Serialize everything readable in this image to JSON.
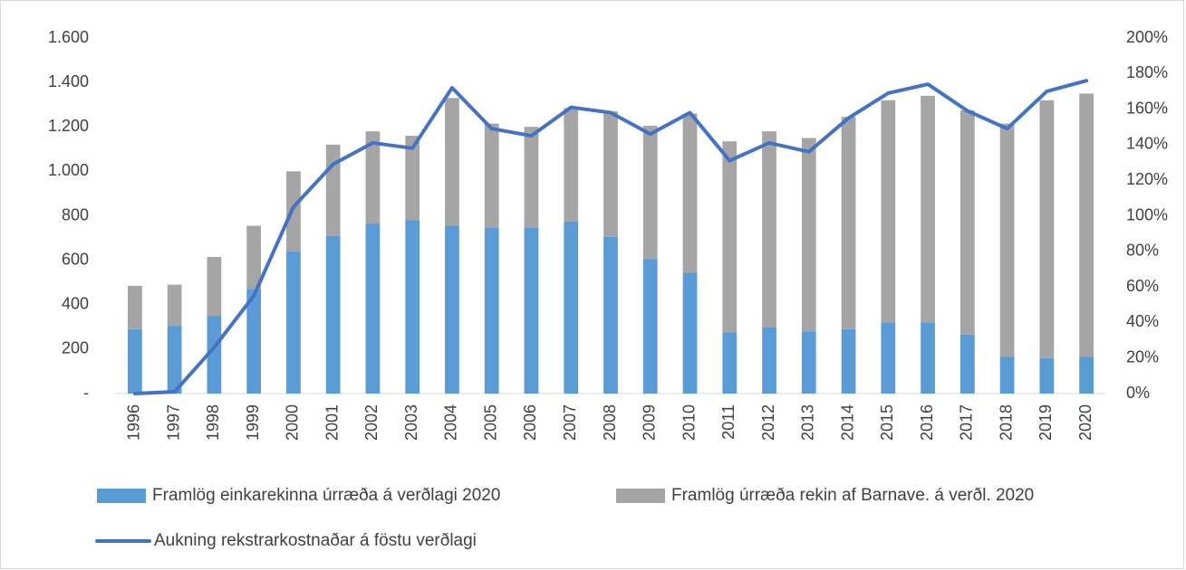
{
  "chart_data": {
    "type": "bar",
    "stacked": true,
    "categories": [
      "1996",
      "1997",
      "1998",
      "1999",
      "2000",
      "2001",
      "2002",
      "2003",
      "2004",
      "2005",
      "2006",
      "2007",
      "2008",
      "2009",
      "2010",
      "2011",
      "2012",
      "2013",
      "2014",
      "2015",
      "2016",
      "2017",
      "2018",
      "2019",
      "2020"
    ],
    "series": [
      {
        "name": "Framlög einkarekinna úrræða á verðlagi 2020",
        "type": "bar",
        "color": "#5b9bd5",
        "values": [
          290,
          305,
          350,
          470,
          640,
          710,
          765,
          780,
          755,
          745,
          745,
          775,
          705,
          605,
          545,
          275,
          300,
          280,
          290,
          320,
          320,
          265,
          165,
          160,
          165
        ]
      },
      {
        "name": "Framlög úrræða rekin af Barnave. á verðl. 2020",
        "type": "bar",
        "color": "#a5a5a5",
        "values": [
          195,
          185,
          265,
          285,
          360,
          410,
          415,
          380,
          575,
          470,
          455,
          510,
          565,
          600,
          715,
          860,
          880,
          870,
          955,
          1000,
          1020,
          1010,
          1050,
          1160,
          1185
        ]
      },
      {
        "name": "Aukning rekstrarkostnaðar á föstu verðlagi",
        "type": "line",
        "axis": "y2",
        "color": "#4472c4",
        "values": [
          0,
          1,
          26,
          55,
          105,
          129,
          141,
          138,
          172,
          149,
          145,
          161,
          158,
          146,
          158,
          131,
          141,
          136,
          155,
          169,
          174,
          159,
          149,
          170,
          176
        ]
      }
    ],
    "ylim": [
      0,
      1600
    ],
    "yticks": [
      {
        "value": 0,
        "label": "-"
      },
      200,
      400,
      600,
      800,
      {
        "value": 1000,
        "label": "1.000"
      },
      {
        "value": 1200,
        "label": "1.200"
      },
      {
        "value": 1400,
        "label": "1.400"
      },
      {
        "value": 1600,
        "label": "1.600"
      }
    ],
    "y2lim": [
      0,
      200
    ],
    "y2ticks": [
      {
        "value": 0,
        "label": "0%"
      },
      {
        "value": 20,
        "label": "20%"
      },
      {
        "value": 40,
        "label": "40%"
      },
      {
        "value": 60,
        "label": "60%"
      },
      {
        "value": 80,
        "label": "80%"
      },
      {
        "value": 100,
        "label": "100%"
      },
      {
        "value": 120,
        "label": "120%"
      },
      {
        "value": 140,
        "label": "140%"
      },
      {
        "value": 160,
        "label": "160%"
      },
      {
        "value": 180,
        "label": "180%"
      },
      {
        "value": 200,
        "label": "200%"
      }
    ],
    "grid": false
  }
}
